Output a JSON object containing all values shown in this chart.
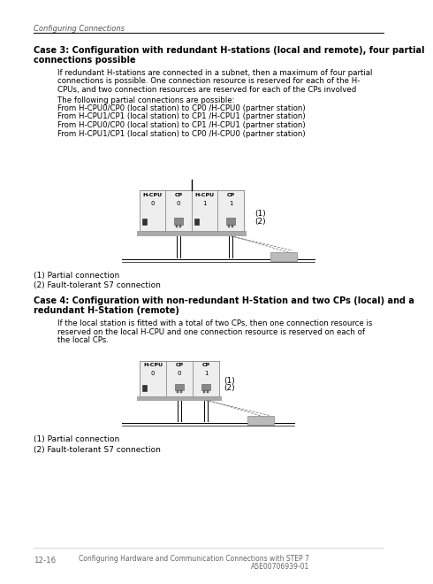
{
  "bg_color": "#ffffff",
  "header_text": "Configuring Connections",
  "footer_left": "12-16",
  "footer_center": "Configuring Hardware and Communication Connections with STEP 7",
  "footer_right": "A5E00706939-01",
  "case3_title_line1": "Case 3: Configuration with redundant H-stations (local and remote), four partial",
  "case3_title_line2": "connections possible",
  "case3_body": [
    "If redundant H-stations are connected in a subnet, then a maximum of four partial",
    "connections is possible. One connection resource is reserved for each of the H-",
    "CPUs, and two connection resources are reserved for each of the CPs involved"
  ],
  "case3_connections_header": "The following partial connections are possible:",
  "case3_connections": [
    "From H-CPU0/CP0 (local station) to CP0 /H-CPU0 (partner station)",
    "From H-CPU1/CP1 (local station) to CP1 /H-CPU1 (partner station)",
    "From H-CPU0/CP0 (local station) to CP1 /H-CPU1 (partner station)",
    "From H-CPU1/CP1 (local station) to CP0 /H-CPU0 (partner station)"
  ],
  "case3_label1": "(1) Partial connection",
  "case3_label2": "(2) Fault-tolerant S7 connection",
  "case4_title_line1": "Case 4: Configuration with non-redundant H-Station and two CPs (local) and a",
  "case4_title_line2": "redundant H-Station (remote)",
  "case4_body": [
    "If the local station is fitted with a total of two CPs, then one connection resource is",
    "reserved on the local H-CPU and one connection resource is reserved on each of",
    "the local CPs."
  ],
  "case4_label1": "(1) Partial connection",
  "case4_label2": "(2) Fault-tolerant S7 connection"
}
